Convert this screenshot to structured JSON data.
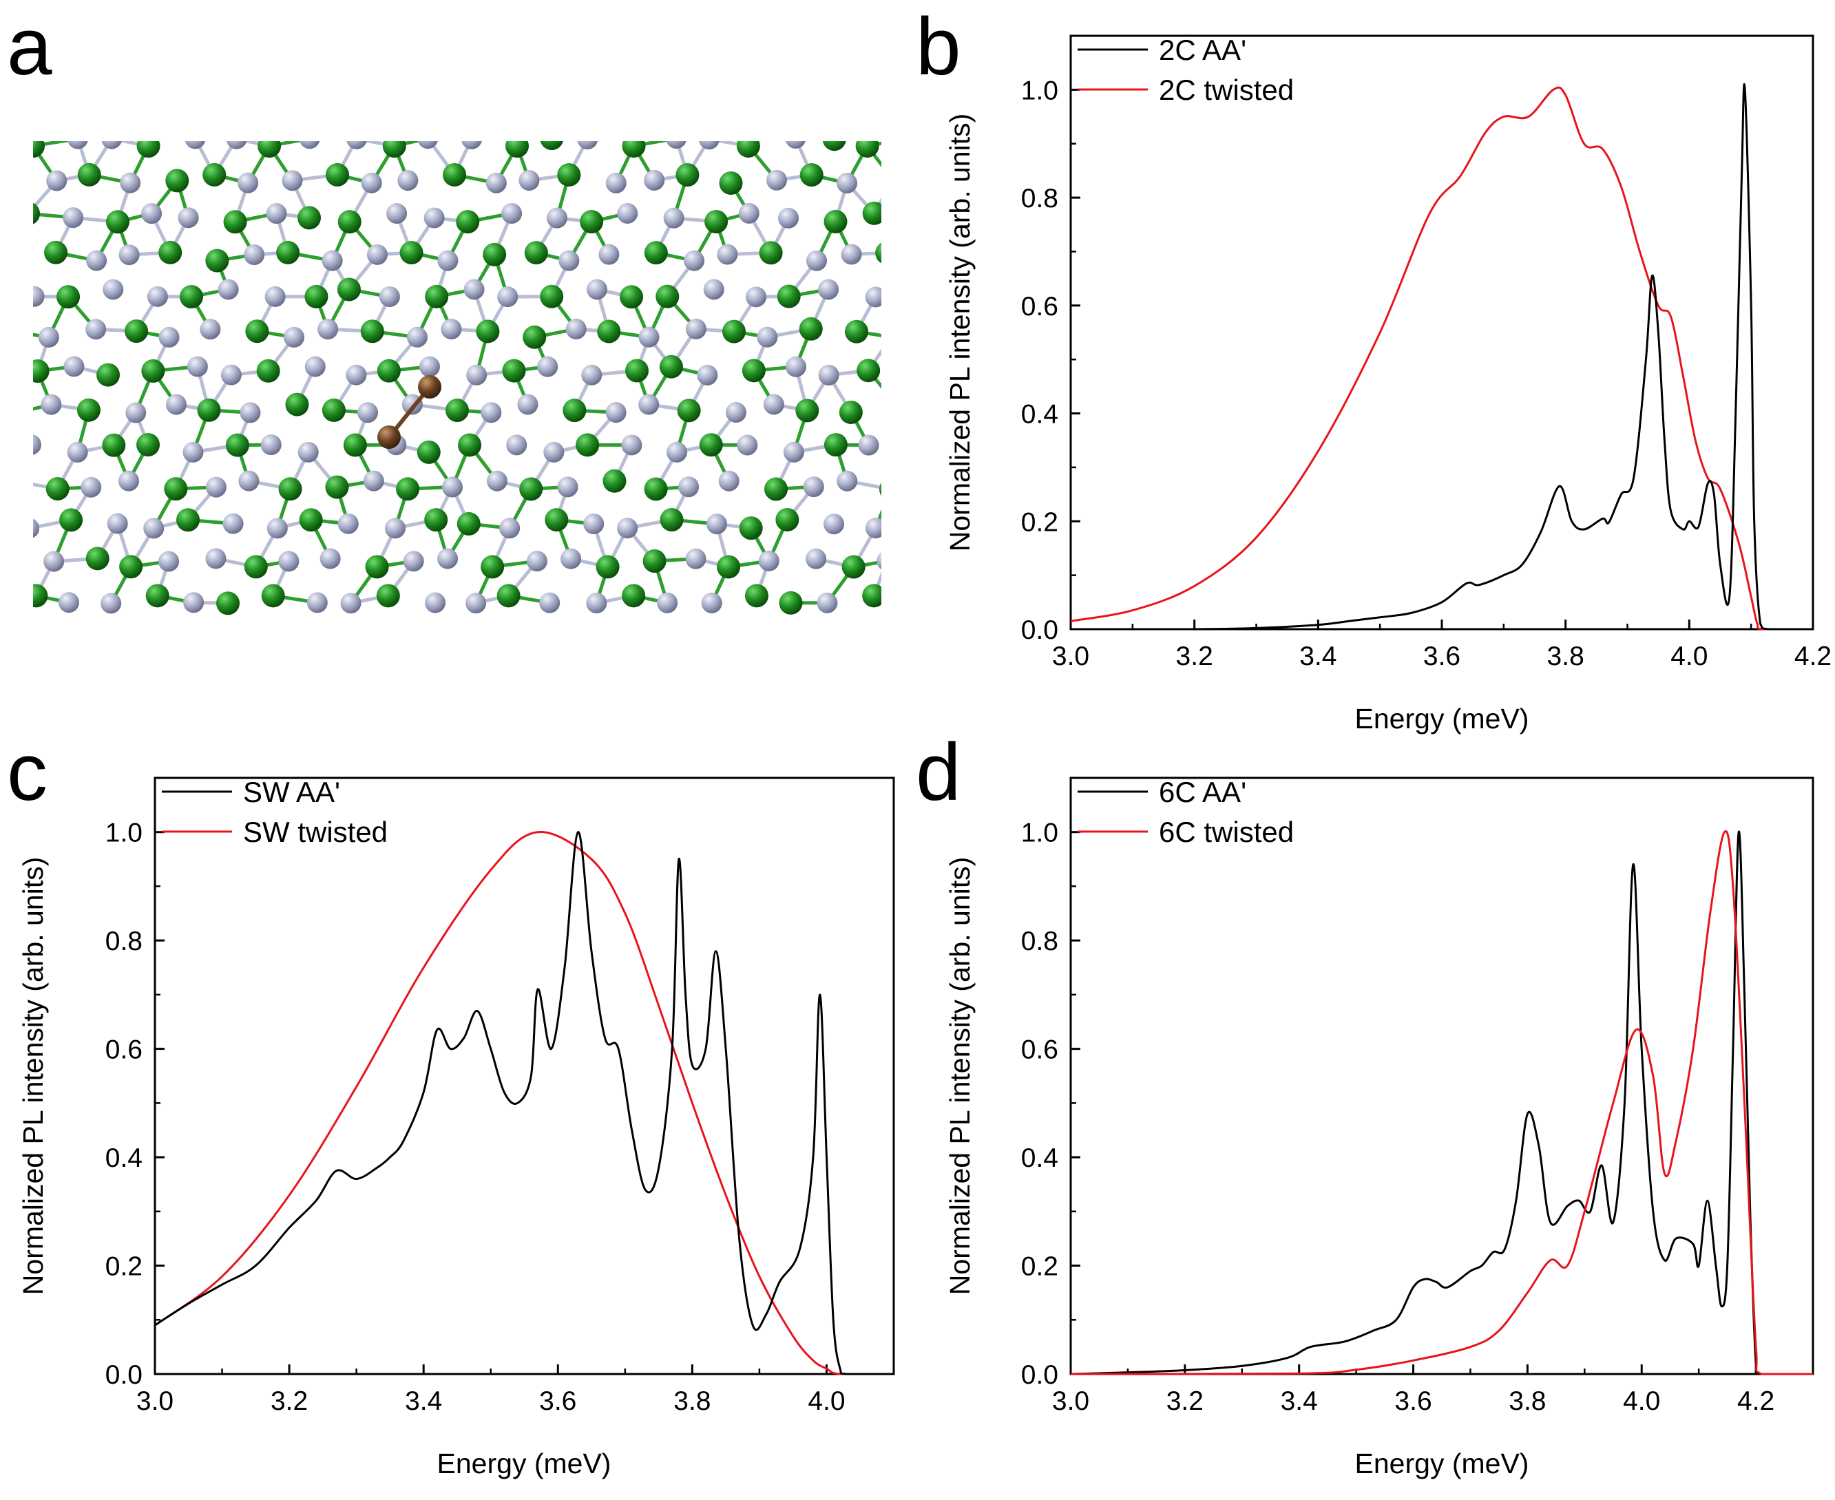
{
  "figure": {
    "panel_a": {
      "letter": "a"
    },
    "colors": {
      "black_curve": "#000000",
      "red_curve": "#e8141b",
      "carbon_green": "#1f8a1f",
      "nitrogen_grey": "#a8adc8",
      "substituted_brown": "#6b4324",
      "bond_green": "#2e9e2e",
      "bond_grey": "#b9bdd4"
    }
  },
  "chart_data": [
    {
      "panel": "b",
      "type": "line",
      "xlabel": "Energy (meV)",
      "ylabel": "Normalized PL intensity (arb. units)",
      "xlim": [
        3.0,
        4.2
      ],
      "ylim": [
        0.0,
        1.1
      ],
      "xticks": [
        "3.0",
        "3.2",
        "3.4",
        "3.6",
        "3.8",
        "4.0",
        "4.2"
      ],
      "yticks": [
        "0.0",
        "0.2",
        "0.4",
        "0.6",
        "0.8",
        "1.0"
      ],
      "legend_position": "top-left",
      "series": [
        {
          "name": "2C AA'",
          "color": "#000000",
          "points": [
            [
              3.0,
              0.0
            ],
            [
              3.2,
              0.0
            ],
            [
              3.3,
              0.002
            ],
            [
              3.4,
              0.008
            ],
            [
              3.45,
              0.015
            ],
            [
              3.5,
              0.022
            ],
            [
              3.55,
              0.03
            ],
            [
              3.6,
              0.05
            ],
            [
              3.64,
              0.085
            ],
            [
              3.66,
              0.082
            ],
            [
              3.7,
              0.1
            ],
            [
              3.73,
              0.12
            ],
            [
              3.76,
              0.18
            ],
            [
              3.79,
              0.265
            ],
            [
              3.81,
              0.2
            ],
            [
              3.83,
              0.185
            ],
            [
              3.86,
              0.205
            ],
            [
              3.87,
              0.198
            ],
            [
              3.89,
              0.25
            ],
            [
              3.91,
              0.28
            ],
            [
              3.93,
              0.5
            ],
            [
              3.94,
              0.655
            ],
            [
              3.95,
              0.55
            ],
            [
              3.96,
              0.35
            ],
            [
              3.97,
              0.22
            ],
            [
              3.99,
              0.185
            ],
            [
              4.0,
              0.2
            ],
            [
              4.015,
              0.19
            ],
            [
              4.03,
              0.27
            ],
            [
              4.04,
              0.25
            ],
            [
              4.05,
              0.12
            ],
            [
              4.065,
              0.06
            ],
            [
              4.075,
              0.4
            ],
            [
              4.085,
              0.85
            ],
            [
              4.09,
              1.0
            ],
            [
              4.1,
              0.6
            ],
            [
              4.105,
              0.2
            ],
            [
              4.115,
              0.01
            ],
            [
              4.13,
              0.0
            ],
            [
              4.2,
              0.0
            ]
          ]
        },
        {
          "name": "2C twisted",
          "color": "#e8141b",
          "points": [
            [
              3.0,
              0.015
            ],
            [
              3.1,
              0.035
            ],
            [
              3.2,
              0.08
            ],
            [
              3.3,
              0.17
            ],
            [
              3.4,
              0.33
            ],
            [
              3.5,
              0.55
            ],
            [
              3.58,
              0.77
            ],
            [
              3.63,
              0.84
            ],
            [
              3.67,
              0.92
            ],
            [
              3.7,
              0.95
            ],
            [
              3.74,
              0.95
            ],
            [
              3.78,
              1.0
            ],
            [
              3.8,
              0.99
            ],
            [
              3.83,
              0.9
            ],
            [
              3.86,
              0.89
            ],
            [
              3.89,
              0.82
            ],
            [
              3.92,
              0.7
            ],
            [
              3.95,
              0.6
            ],
            [
              3.97,
              0.58
            ],
            [
              3.99,
              0.47
            ],
            [
              4.01,
              0.35
            ],
            [
              4.03,
              0.28
            ],
            [
              4.05,
              0.26
            ],
            [
              4.08,
              0.16
            ],
            [
              4.1,
              0.06
            ],
            [
              4.11,
              0.01
            ],
            [
              4.12,
              0.0
            ],
            [
              4.2,
              0.0
            ]
          ]
        }
      ]
    },
    {
      "panel": "c",
      "type": "line",
      "xlabel": "Energy (meV)",
      "ylabel": "Normalized PL intensity (arb. units)",
      "xlim": [
        3.0,
        4.1
      ],
      "ylim": [
        0.0,
        1.1
      ],
      "xticks": [
        "3.0",
        "3.2",
        "3.4",
        "3.6",
        "3.8",
        "4.0"
      ],
      "yticks": [
        "0.0",
        "0.2",
        "0.4",
        "0.6",
        "0.8",
        "1.0"
      ],
      "legend_position": "top-left",
      "series": [
        {
          "name": "SW AA'",
          "color": "#000000",
          "points": [
            [
              3.0,
              0.09
            ],
            [
              3.05,
              0.13
            ],
            [
              3.1,
              0.165
            ],
            [
              3.15,
              0.2
            ],
            [
              3.2,
              0.27
            ],
            [
              3.24,
              0.32
            ],
            [
              3.27,
              0.375
            ],
            [
              3.3,
              0.36
            ],
            [
              3.33,
              0.38
            ],
            [
              3.35,
              0.4
            ],
            [
              3.37,
              0.43
            ],
            [
              3.4,
              0.52
            ],
            [
              3.42,
              0.635
            ],
            [
              3.44,
              0.6
            ],
            [
              3.46,
              0.62
            ],
            [
              3.48,
              0.67
            ],
            [
              3.5,
              0.6
            ],
            [
              3.52,
              0.52
            ],
            [
              3.54,
              0.5
            ],
            [
              3.56,
              0.55
            ],
            [
              3.57,
              0.71
            ],
            [
              3.59,
              0.6
            ],
            [
              3.61,
              0.75
            ],
            [
              3.63,
              1.0
            ],
            [
              3.65,
              0.78
            ],
            [
              3.67,
              0.62
            ],
            [
              3.69,
              0.6
            ],
            [
              3.71,
              0.45
            ],
            [
              3.73,
              0.34
            ],
            [
              3.75,
              0.38
            ],
            [
              3.77,
              0.6
            ],
            [
              3.78,
              0.95
            ],
            [
              3.79,
              0.7
            ],
            [
              3.8,
              0.57
            ],
            [
              3.82,
              0.6
            ],
            [
              3.835,
              0.78
            ],
            [
              3.85,
              0.6
            ],
            [
              3.87,
              0.25
            ],
            [
              3.89,
              0.09
            ],
            [
              3.91,
              0.11
            ],
            [
              3.93,
              0.17
            ],
            [
              3.96,
              0.23
            ],
            [
              3.98,
              0.4
            ],
            [
              3.99,
              0.7
            ],
            [
              4.0,
              0.4
            ],
            [
              4.01,
              0.1
            ],
            [
              4.02,
              0.01
            ],
            [
              4.03,
              0.0
            ],
            [
              4.1,
              0.0
            ]
          ]
        },
        {
          "name": "SW twisted",
          "color": "#e8141b",
          "points": [
            [
              3.0,
              0.09
            ],
            [
              3.1,
              0.18
            ],
            [
              3.2,
              0.33
            ],
            [
              3.3,
              0.53
            ],
            [
              3.4,
              0.75
            ],
            [
              3.5,
              0.93
            ],
            [
              3.57,
              1.0
            ],
            [
              3.65,
              0.95
            ],
            [
              3.7,
              0.85
            ],
            [
              3.75,
              0.68
            ],
            [
              3.8,
              0.5
            ],
            [
              3.85,
              0.33
            ],
            [
              3.9,
              0.18
            ],
            [
              3.95,
              0.07
            ],
            [
              3.98,
              0.025
            ],
            [
              4.0,
              0.01
            ],
            [
              4.02,
              0.0
            ],
            [
              4.1,
              0.0
            ]
          ]
        }
      ]
    },
    {
      "panel": "d",
      "type": "line",
      "xlabel": "Energy (meV)",
      "ylabel": "Normalized PL intensity (arb. units)",
      "xlim": [
        3.0,
        4.3
      ],
      "ylim": [
        0.0,
        1.1
      ],
      "xticks": [
        "3.0",
        "3.2",
        "3.4",
        "3.6",
        "3.8",
        "4.0",
        "4.2"
      ],
      "yticks": [
        "0.0",
        "0.2",
        "0.4",
        "0.6",
        "0.8",
        "1.0"
      ],
      "legend_position": "top-left",
      "series": [
        {
          "name": "6C AA'",
          "color": "#000000",
          "points": [
            [
              3.0,
              0.0
            ],
            [
              3.1,
              0.003
            ],
            [
              3.2,
              0.007
            ],
            [
              3.3,
              0.015
            ],
            [
              3.38,
              0.03
            ],
            [
              3.42,
              0.05
            ],
            [
              3.48,
              0.06
            ],
            [
              3.53,
              0.08
            ],
            [
              3.57,
              0.1
            ],
            [
              3.6,
              0.16
            ],
            [
              3.62,
              0.175
            ],
            [
              3.64,
              0.17
            ],
            [
              3.66,
              0.16
            ],
            [
              3.7,
              0.19
            ],
            [
              3.72,
              0.2
            ],
            [
              3.74,
              0.225
            ],
            [
              3.76,
              0.23
            ],
            [
              3.78,
              0.32
            ],
            [
              3.8,
              0.48
            ],
            [
              3.82,
              0.42
            ],
            [
              3.84,
              0.28
            ],
            [
              3.87,
              0.31
            ],
            [
              3.89,
              0.32
            ],
            [
              3.91,
              0.3
            ],
            [
              3.93,
              0.385
            ],
            [
              3.95,
              0.28
            ],
            [
              3.97,
              0.5
            ],
            [
              3.985,
              0.94
            ],
            [
              4.0,
              0.6
            ],
            [
              4.02,
              0.3
            ],
            [
              4.04,
              0.21
            ],
            [
              4.06,
              0.25
            ],
            [
              4.09,
              0.24
            ],
            [
              4.1,
              0.2
            ],
            [
              4.115,
              0.32
            ],
            [
              4.13,
              0.2
            ],
            [
              4.14,
              0.125
            ],
            [
              4.15,
              0.2
            ],
            [
              4.16,
              0.6
            ],
            [
              4.17,
              1.0
            ],
            [
              4.18,
              0.7
            ],
            [
              4.19,
              0.3
            ],
            [
              4.2,
              0.02
            ],
            [
              4.21,
              0.0
            ],
            [
              4.3,
              0.0
            ]
          ]
        },
        {
          "name": "6C twisted",
          "color": "#e8141b",
          "points": [
            [
              3.0,
              0.0
            ],
            [
              3.4,
              0.001
            ],
            [
              3.5,
              0.008
            ],
            [
              3.6,
              0.025
            ],
            [
              3.7,
              0.05
            ],
            [
              3.75,
              0.08
            ],
            [
              3.8,
              0.15
            ],
            [
              3.84,
              0.21
            ],
            [
              3.87,
              0.2
            ],
            [
              3.9,
              0.3
            ],
            [
              3.95,
              0.5
            ],
            [
              3.99,
              0.635
            ],
            [
              4.02,
              0.55
            ],
            [
              4.04,
              0.37
            ],
            [
              4.06,
              0.43
            ],
            [
              4.09,
              0.6
            ],
            [
              4.12,
              0.85
            ],
            [
              4.145,
              1.0
            ],
            [
              4.16,
              0.9
            ],
            [
              4.18,
              0.5
            ],
            [
              4.2,
              0.05
            ],
            [
              4.21,
              0.0
            ],
            [
              4.3,
              0.0
            ]
          ]
        }
      ]
    }
  ]
}
